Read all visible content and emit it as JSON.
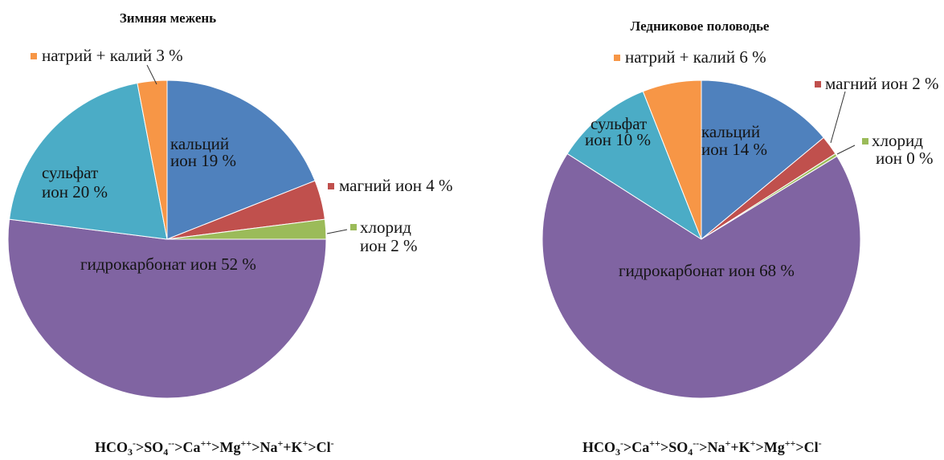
{
  "chart_data": [
    {
      "type": "pie",
      "title": "Зимняя межень",
      "slices": [
        {
          "label": [
            "кальций",
            "ион 19 %"
          ],
          "value": 19,
          "color": "#4F81BD"
        },
        {
          "label": [
            "магний ион 4 %"
          ],
          "value": 4,
          "color": "#C0504D"
        },
        {
          "label": [
            "хлорид",
            "ион 2 %"
          ],
          "value": 2,
          "color": "#9BBB59"
        },
        {
          "label": [
            "гидрокарбонат ион 52 %"
          ],
          "value": 52,
          "color": "#8064A2"
        },
        {
          "label": [
            "сульфат",
            "ион 20 %"
          ],
          "value": 20,
          "color": "#4BACC6"
        },
        {
          "label": [
            "натрий + калий 3 %"
          ],
          "value": 3,
          "color": "#F79646"
        }
      ],
      "caption": [
        {
          "base": "HCO",
          "sub": "3",
          "sup": "-"
        },
        {
          "base": ">SO",
          "sub": "4",
          "sup": "--"
        },
        {
          "base": ">Ca",
          "sup": "++"
        },
        {
          "base": ">Mg",
          "sup": "++"
        },
        {
          "base": ">Na",
          "sup": "+"
        },
        {
          "base": "+K",
          "sup": "+"
        },
        {
          "base": ">Cl",
          "sup": "-"
        }
      ]
    },
    {
      "type": "pie",
      "title": "Ледниковое половодье",
      "slices": [
        {
          "label": [
            "кальций",
            "ион 14 %"
          ],
          "value": 14,
          "color": "#4F81BD"
        },
        {
          "label": [
            "магний ион 2 %"
          ],
          "value": 2,
          "color": "#C0504D"
        },
        {
          "label": [
            "хлорид",
            "ион 0 %"
          ],
          "value": 0.3,
          "color": "#9BBB59"
        },
        {
          "label": [
            "гидрокарбонат ион 68 %"
          ],
          "value": 68,
          "color": "#8064A2"
        },
        {
          "label": [
            "сульфат",
            "ион 10 %"
          ],
          "value": 10,
          "color": "#4BACC6"
        },
        {
          "label": [
            "натрий + калий 6 %"
          ],
          "value": 6,
          "color": "#F79646"
        }
      ],
      "caption": [
        {
          "base": "HCO",
          "sub": "3",
          "sup": "-"
        },
        {
          "base": ">Ca",
          "sup": "++"
        },
        {
          "base": ">SO",
          "sub": "4",
          "sup": "--"
        },
        {
          "base": ">Na",
          "sup": "+"
        },
        {
          "base": "+K",
          "sup": "+"
        },
        {
          "base": ">Mg",
          "sup": "++"
        },
        {
          "base": ">Cl",
          "sup": "-"
        }
      ]
    }
  ]
}
